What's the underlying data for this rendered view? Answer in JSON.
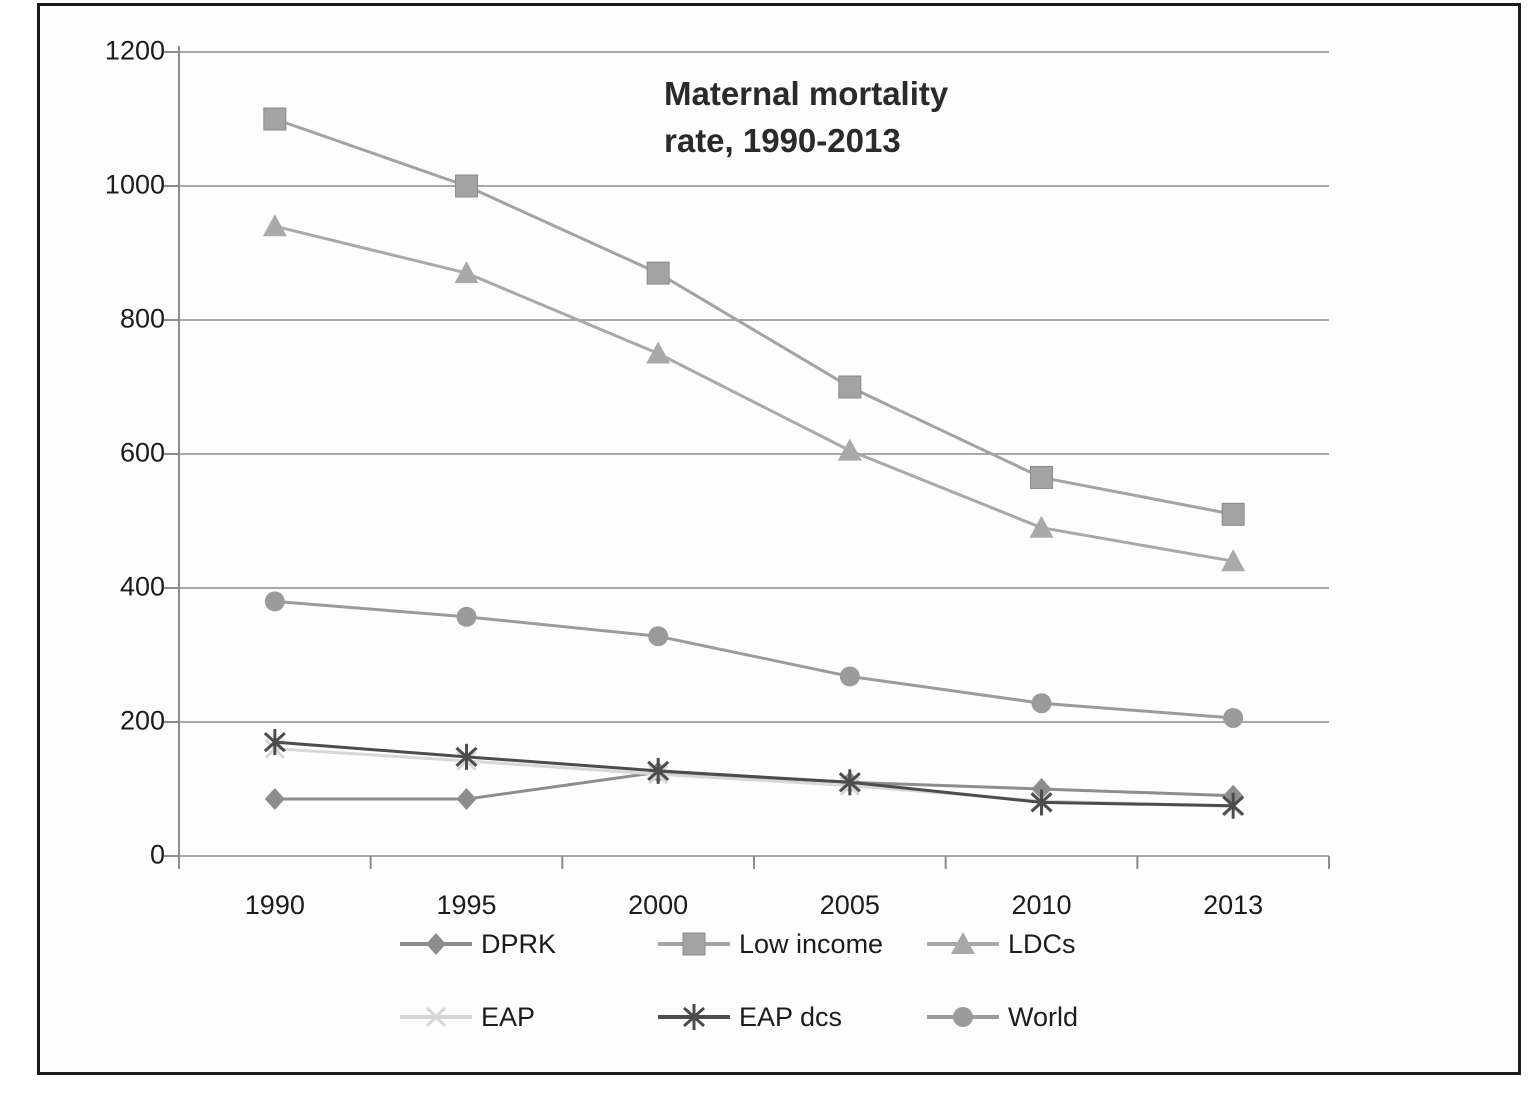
{
  "figure": {
    "title_line1": "Maternal mortality",
    "title_line2": "rate, 1990-2013"
  },
  "chart_data": {
    "type": "line",
    "title": "Maternal mortality rate, 1990-2013",
    "categories": [
      "1990",
      "1995",
      "2000",
      "2005",
      "2010",
      "2013"
    ],
    "series": [
      {
        "name": "DPRK",
        "marker": "diamond",
        "color": "#8d8d8d",
        "values": [
          85,
          85,
          125,
          110,
          100,
          90
        ]
      },
      {
        "name": "Low income",
        "marker": "square",
        "color": "#a3a3a3",
        "values": [
          1100,
          1000,
          870,
          700,
          565,
          510
        ]
      },
      {
        "name": "LDCs",
        "marker": "triangle",
        "color": "#a9a9a9",
        "values": [
          940,
          870,
          750,
          605,
          490,
          440
        ]
      },
      {
        "name": "EAP",
        "marker": "x",
        "color": "#d7d7d7",
        "values": [
          160,
          142,
          122,
          105,
          82,
          74
        ]
      },
      {
        "name": "EAP dcs",
        "marker": "asterisk",
        "color": "#4c4c4c",
        "values": [
          170,
          148,
          127,
          110,
          80,
          75
        ]
      },
      {
        "name": "World",
        "marker": "circle",
        "color": "#9b9b9b",
        "values": [
          380,
          357,
          328,
          268,
          228,
          206
        ]
      }
    ],
    "ylim": [
      0,
      1200
    ],
    "yticks": [
      0,
      200,
      400,
      600,
      800,
      1000,
      1200
    ],
    "xlabel": "",
    "ylabel": "",
    "grid": "horizontal",
    "legend_position": "bottom",
    "axis_color": "#8c8c8c",
    "grid_color": "#8c8c8c"
  }
}
